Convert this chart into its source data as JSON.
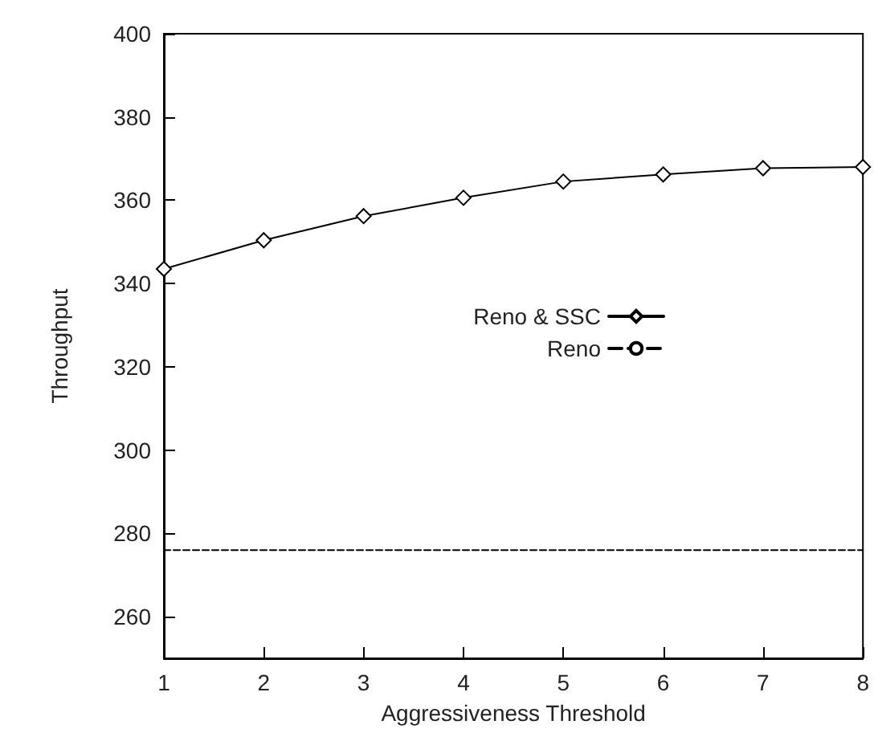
{
  "chart_data": {
    "type": "line",
    "xlabel": "Aggressiveness Threshold",
    "ylabel": "Throughput",
    "x": [
      1,
      2,
      3,
      4,
      5,
      6,
      7,
      8
    ],
    "series": [
      {
        "name": "Reno & SSC",
        "color": "#000000",
        "values": [
          343.5,
          350.4,
          356.2,
          360.6,
          364.5,
          366.2,
          367.7,
          368
        ],
        "marker": "diamond",
        "line_style": "solid"
      },
      {
        "name": "Reno",
        "color": "#000000",
        "x": [
          1,
          8
        ],
        "values": [
          276,
          276
        ],
        "marker": "none",
        "line_style": "dashed"
      }
    ],
    "xlim": [
      1,
      8
    ],
    "xticks": [
      1,
      2,
      3,
      4,
      5,
      6,
      7,
      8
    ],
    "ylim": [
      250,
      400
    ],
    "yticks": [
      260,
      280,
      300,
      320,
      340,
      360,
      380,
      400
    ],
    "grid": false,
    "legend": "right"
  }
}
